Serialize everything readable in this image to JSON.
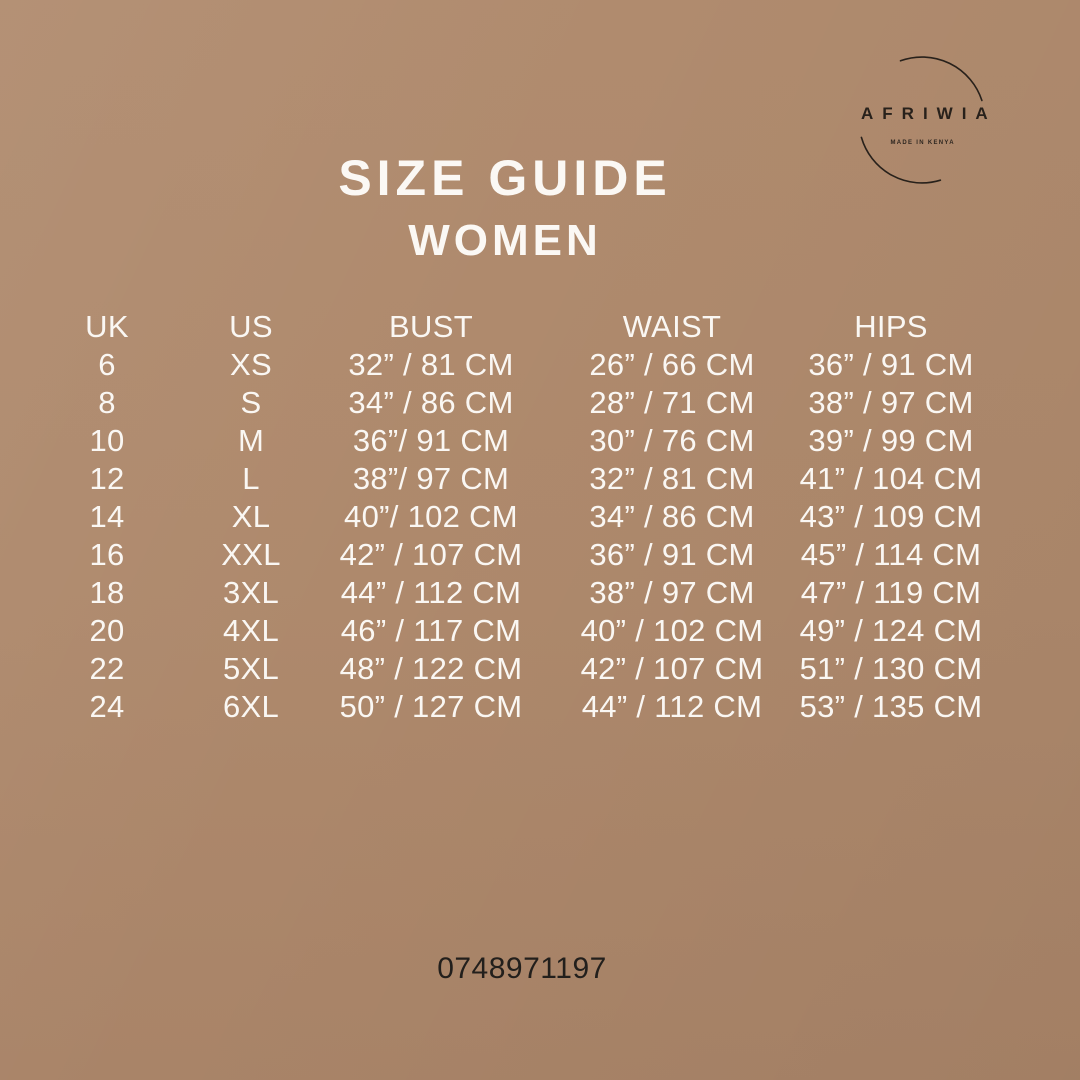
{
  "logo": {
    "brand": "AFRIWIA",
    "tagline": "MADE IN KENYA"
  },
  "header": {
    "title": "SIZE GUIDE",
    "subtitle": "WOMEN"
  },
  "table": {
    "columns": [
      "UK",
      "US",
      "BUST",
      "WAIST",
      "HIPS"
    ],
    "rows": [
      [
        "6",
        "XS",
        "32” / 81 CM",
        "26” / 66 CM",
        "36” / 91 CM"
      ],
      [
        "8",
        "S",
        "34” / 86 CM",
        "28” / 71 CM",
        "38” / 97 CM"
      ],
      [
        "10",
        "M",
        "36”/ 91 CM",
        "30” / 76 CM",
        "39” / 99 CM"
      ],
      [
        "12",
        "L",
        "38”/ 97 CM",
        "32” / 81 CM",
        "41” / 104 CM"
      ],
      [
        "14",
        "XL",
        "40”/ 102 CM",
        "34” / 86 CM",
        "43” / 109 CM"
      ],
      [
        "16",
        "XXL",
        "42” / 107 CM",
        "36” / 91 CM",
        "45” / 114 CM"
      ],
      [
        "18",
        "3XL",
        "44” / 112 CM",
        "38” / 97 CM",
        "47” / 119 CM"
      ],
      [
        "20",
        "4XL",
        "46” / 117 CM",
        "40” / 102 CM",
        "49” / 124 CM"
      ],
      [
        "22",
        "5XL",
        "48” / 122 CM",
        "42” / 107 CM",
        "51” / 130 CM"
      ],
      [
        "24",
        "6XL",
        "50” / 127 CM",
        "44” / 112 CM",
        "53” / 135 CM"
      ]
    ]
  },
  "footer": {
    "phone": "0748971197"
  },
  "colors": {
    "background": "#ae896c",
    "text_light": "#faf7f3",
    "logo_ink": "#28211b",
    "phone_ink": "#221f1c"
  }
}
